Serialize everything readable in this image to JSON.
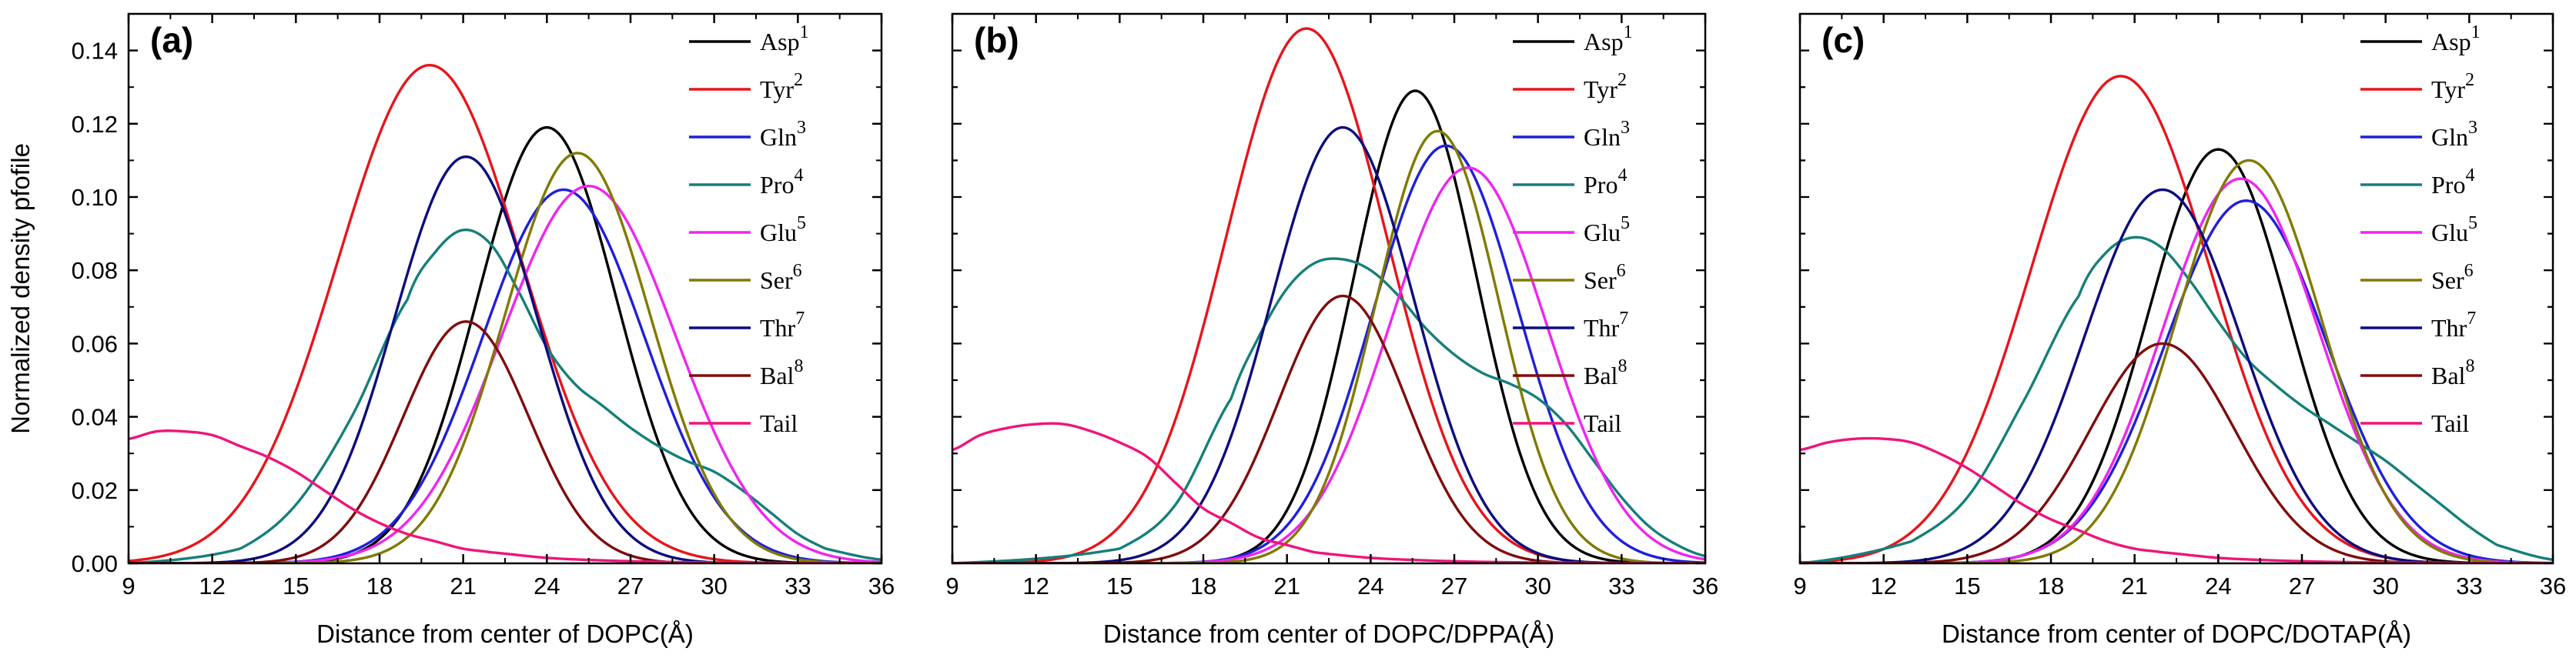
{
  "colors": {
    "Asp1": "#000000",
    "Tyr2": "#e8141b",
    "Gln3": "#1f1fdc",
    "Pro4": "#157f7a",
    "Glu5": "#f024f0",
    "Ser6": "#807a00",
    "Thr7": "#0c0c80",
    "Bal8": "#800c0c",
    "Tail": "#f0147a"
  },
  "chart_data": [
    {
      "type": "line",
      "panel_label": "(a)",
      "xlabel": "Distance from center of DOPC(Å)",
      "ylabel": "Normalized density pfofile",
      "xlim": [
        9,
        36
      ],
      "ylim": [
        0,
        0.15
      ],
      "xticks": [
        "9",
        "12",
        "15",
        "18",
        "21",
        "24",
        "27",
        "30",
        "33",
        "36"
      ],
      "yticks": [
        "0.00",
        "0.02",
        "0.04",
        "0.06",
        "0.08",
        "0.10",
        "0.12",
        "0.14"
      ],
      "legend_position": "top-right",
      "series": [
        {
          "key": "Asp1",
          "name": "Asp",
          "sup": "1",
          "shape": "gauss",
          "peak_x": 24.0,
          "peak_y": 0.119,
          "sigma": 2.5
        },
        {
          "key": "Tyr2",
          "name": "Tyr",
          "sup": "2",
          "shape": "gauss",
          "peak_x": 19.8,
          "peak_y": 0.136,
          "sigma": 3.3
        },
        {
          "key": "Gln3",
          "name": "Gln",
          "sup": "3",
          "shape": "gauss",
          "peak_x": 24.6,
          "peak_y": 0.102,
          "sigma": 2.9
        },
        {
          "key": "Pro4",
          "name": "Pro",
          "sup": "4",
          "shape": "points",
          "x": [
            9,
            13,
            15,
            17,
            19,
            20,
            21,
            22,
            23,
            24,
            25,
            26,
            27,
            28,
            29,
            30,
            31,
            32,
            33,
            34,
            36
          ],
          "y": [
            0.0,
            0.004,
            0.016,
            0.04,
            0.072,
            0.085,
            0.091,
            0.087,
            0.074,
            0.059,
            0.049,
            0.043,
            0.037,
            0.032,
            0.028,
            0.025,
            0.02,
            0.014,
            0.008,
            0.004,
            0.001
          ]
        },
        {
          "key": "Glu5",
          "name": "Glu",
          "sup": "5",
          "shape": "gauss",
          "peak_x": 25.5,
          "peak_y": 0.103,
          "sigma": 3.1
        },
        {
          "key": "Ser6",
          "name": "Ser",
          "sup": "6",
          "shape": "gauss",
          "peak_x": 25.1,
          "peak_y": 0.112,
          "sigma": 2.6
        },
        {
          "key": "Thr7",
          "name": "Thr",
          "sup": "7",
          "shape": "gauss",
          "peak_x": 21.1,
          "peak_y": 0.111,
          "sigma": 2.55
        },
        {
          "key": "Bal8",
          "name": "Bal",
          "sup": "8",
          "shape": "gauss",
          "peak_x": 21.1,
          "peak_y": 0.066,
          "sigma": 2.25
        },
        {
          "key": "Tail",
          "name": "Tail",
          "sup": "",
          "shape": "points",
          "x": [
            9,
            10,
            11,
            12,
            13,
            14,
            15,
            16,
            17,
            18,
            19,
            20,
            21,
            22,
            24,
            26,
            28,
            30,
            36
          ],
          "y": [
            0.034,
            0.036,
            0.036,
            0.035,
            0.032,
            0.029,
            0.025,
            0.02,
            0.015,
            0.011,
            0.008,
            0.006,
            0.004,
            0.003,
            0.0015,
            0.0008,
            0.0004,
            0.0002,
            0.0
          ]
        }
      ]
    },
    {
      "type": "line",
      "panel_label": "(b)",
      "xlabel": "Distance from center of DOPC/DPPA(Å)",
      "ylabel": "",
      "xlim": [
        9,
        36
      ],
      "ylim": [
        0,
        0.15
      ],
      "xticks": [
        "9",
        "12",
        "15",
        "18",
        "21",
        "24",
        "27",
        "30",
        "33",
        "36"
      ],
      "yticks": [],
      "legend_position": "top-right",
      "series": [
        {
          "key": "Asp1",
          "name": "Asp",
          "sup": "1",
          "shape": "gauss",
          "peak_x": 25.6,
          "peak_y": 0.129,
          "sigma": 2.2
        },
        {
          "key": "Tyr2",
          "name": "Tyr",
          "sup": "2",
          "shape": "gauss",
          "peak_x": 21.7,
          "peak_y": 0.146,
          "sigma": 2.9
        },
        {
          "key": "Gln3",
          "name": "Gln",
          "sup": "3",
          "shape": "gauss",
          "peak_x": 26.7,
          "peak_y": 0.114,
          "sigma": 2.6
        },
        {
          "key": "Pro4",
          "name": "Pro",
          "sup": "4",
          "shape": "points",
          "x": [
            9,
            15,
            17,
            19,
            20,
            21,
            22,
            23,
            24,
            25,
            26,
            27,
            28,
            29,
            30,
            31,
            32,
            33,
            34,
            35,
            36
          ],
          "y": [
            0.0,
            0.004,
            0.016,
            0.045,
            0.062,
            0.075,
            0.082,
            0.083,
            0.08,
            0.073,
            0.064,
            0.057,
            0.052,
            0.049,
            0.045,
            0.038,
            0.028,
            0.018,
            0.01,
            0.005,
            0.002
          ]
        },
        {
          "key": "Glu5",
          "name": "Glu",
          "sup": "5",
          "shape": "gauss",
          "peak_x": 27.5,
          "peak_y": 0.108,
          "sigma": 2.8
        },
        {
          "key": "Ser6",
          "name": "Ser",
          "sup": "6",
          "shape": "gauss",
          "peak_x": 26.4,
          "peak_y": 0.118,
          "sigma": 2.2
        },
        {
          "key": "Thr7",
          "name": "Thr",
          "sup": "7",
          "shape": "gauss",
          "peak_x": 23.0,
          "peak_y": 0.119,
          "sigma": 2.55
        },
        {
          "key": "Bal8",
          "name": "Bal",
          "sup": "8",
          "shape": "gauss",
          "peak_x": 23.0,
          "peak_y": 0.073,
          "sigma": 2.3
        },
        {
          "key": "Tail",
          "name": "Tail",
          "sup": "",
          "shape": "points",
          "x": [
            9,
            10,
            11,
            12,
            13,
            14,
            15,
            16,
            17,
            18,
            19,
            20,
            21,
            22,
            24,
            26,
            28,
            30,
            36
          ],
          "y": [
            0.031,
            0.035,
            0.037,
            0.038,
            0.038,
            0.036,
            0.033,
            0.029,
            0.022,
            0.015,
            0.011,
            0.007,
            0.005,
            0.003,
            0.0015,
            0.0008,
            0.0004,
            0.0002,
            0.0
          ]
        }
      ]
    },
    {
      "type": "line",
      "panel_label": "(c)",
      "xlabel": "Distance from center of DOPC/DOTAP(Å)",
      "ylabel": "",
      "xlim": [
        9,
        36
      ],
      "ylim": [
        0,
        0.15
      ],
      "xticks": [
        "9",
        "12",
        "15",
        "18",
        "21",
        "24",
        "27",
        "30",
        "33",
        "36"
      ],
      "yticks": [],
      "legend_position": "top-right",
      "series": [
        {
          "key": "Asp1",
          "name": "Asp",
          "sup": "1",
          "shape": "gauss",
          "peak_x": 24.0,
          "peak_y": 0.113,
          "sigma": 2.5
        },
        {
          "key": "Tyr2",
          "name": "Tyr",
          "sup": "2",
          "shape": "gauss",
          "peak_x": 20.5,
          "peak_y": 0.133,
          "sigma": 3.2
        },
        {
          "key": "Gln3",
          "name": "Gln",
          "sup": "3",
          "shape": "gauss",
          "peak_x": 25.0,
          "peak_y": 0.099,
          "sigma": 2.9
        },
        {
          "key": "Pro4",
          "name": "Pro",
          "sup": "4",
          "shape": "points",
          "x": [
            9,
            13,
            15,
            17,
            19,
            20,
            21,
            22,
            23,
            24,
            25,
            26,
            27,
            28,
            29,
            30,
            31,
            32,
            33,
            34,
            36
          ],
          "y": [
            0.0,
            0.006,
            0.018,
            0.044,
            0.073,
            0.085,
            0.089,
            0.086,
            0.077,
            0.066,
            0.056,
            0.049,
            0.043,
            0.038,
            0.033,
            0.028,
            0.022,
            0.016,
            0.01,
            0.005,
            0.001
          ]
        },
        {
          "key": "Glu5",
          "name": "Glu",
          "sup": "5",
          "shape": "gauss",
          "peak_x": 24.8,
          "peak_y": 0.105,
          "sigma": 2.8
        },
        {
          "key": "Ser6",
          "name": "Ser",
          "sup": "6",
          "shape": "gauss",
          "peak_x": 25.1,
          "peak_y": 0.11,
          "sigma": 2.6
        },
        {
          "key": "Thr7",
          "name": "Thr",
          "sup": "7",
          "shape": "gauss",
          "peak_x": 22.0,
          "peak_y": 0.102,
          "sigma": 2.8
        },
        {
          "key": "Bal8",
          "name": "Bal",
          "sup": "8",
          "shape": "gauss",
          "peak_x": 22.0,
          "peak_y": 0.06,
          "sigma": 2.6
        },
        {
          "key": "Tail",
          "name": "Tail",
          "sup": "",
          "shape": "points",
          "x": [
            9,
            10,
            11,
            12,
            13,
            14,
            15,
            16,
            17,
            18,
            19,
            20,
            21,
            22,
            24,
            26,
            28,
            30,
            36
          ],
          "y": [
            0.031,
            0.033,
            0.034,
            0.034,
            0.033,
            0.03,
            0.026,
            0.021,
            0.016,
            0.012,
            0.009,
            0.006,
            0.004,
            0.003,
            0.0015,
            0.0008,
            0.0004,
            0.0002,
            0.0
          ]
        }
      ]
    }
  ]
}
